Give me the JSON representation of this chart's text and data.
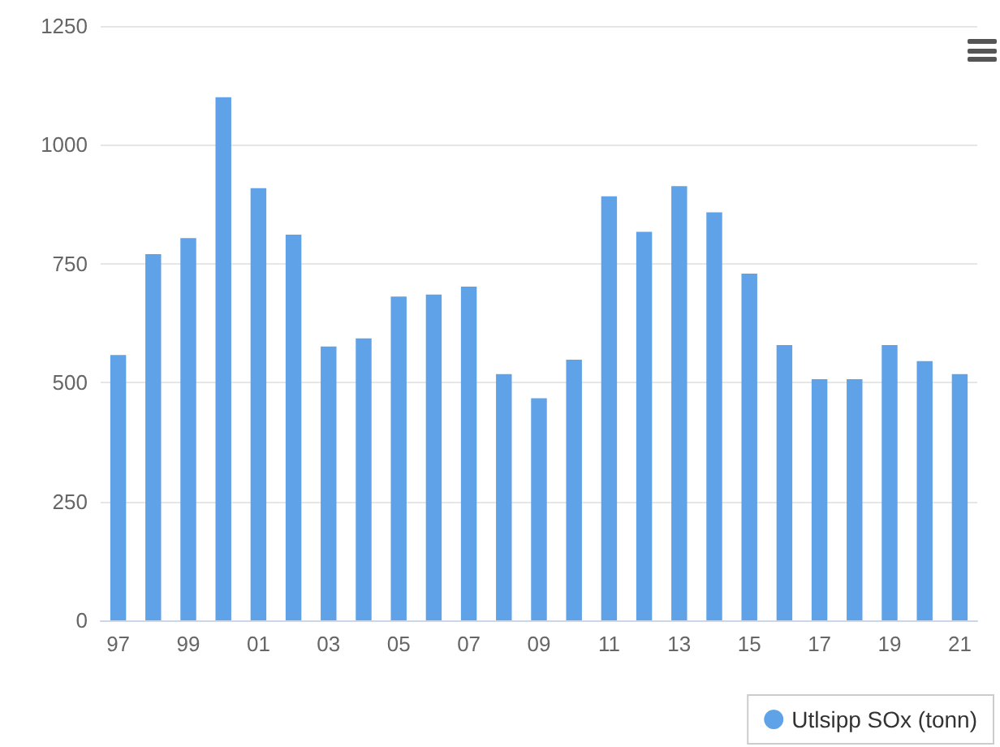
{
  "chart_data": {
    "type": "bar",
    "categories": [
      "97",
      null,
      "99",
      null,
      "01",
      null,
      "03",
      null,
      "05",
      null,
      "07",
      null,
      "09",
      null,
      "11",
      null,
      "13",
      null,
      "15",
      null,
      "17",
      null,
      "19",
      null,
      "21"
    ],
    "series": [
      {
        "name": "Utlsipp SOx (tonn)",
        "color": "#5fa2e8",
        "values": [
          558,
          770,
          804,
          1100,
          909,
          811,
          576,
          593,
          681,
          685,
          702,
          518,
          467,
          548,
          892,
          817,
          913,
          858,
          729,
          579,
          507,
          507,
          579,
          545,
          518
        ]
      }
    ],
    "ylim": [
      0,
      1250
    ],
    "yticks": [
      0,
      250,
      500,
      750,
      1000,
      1250
    ],
    "grid": "y",
    "legend": "bottom right"
  }
}
